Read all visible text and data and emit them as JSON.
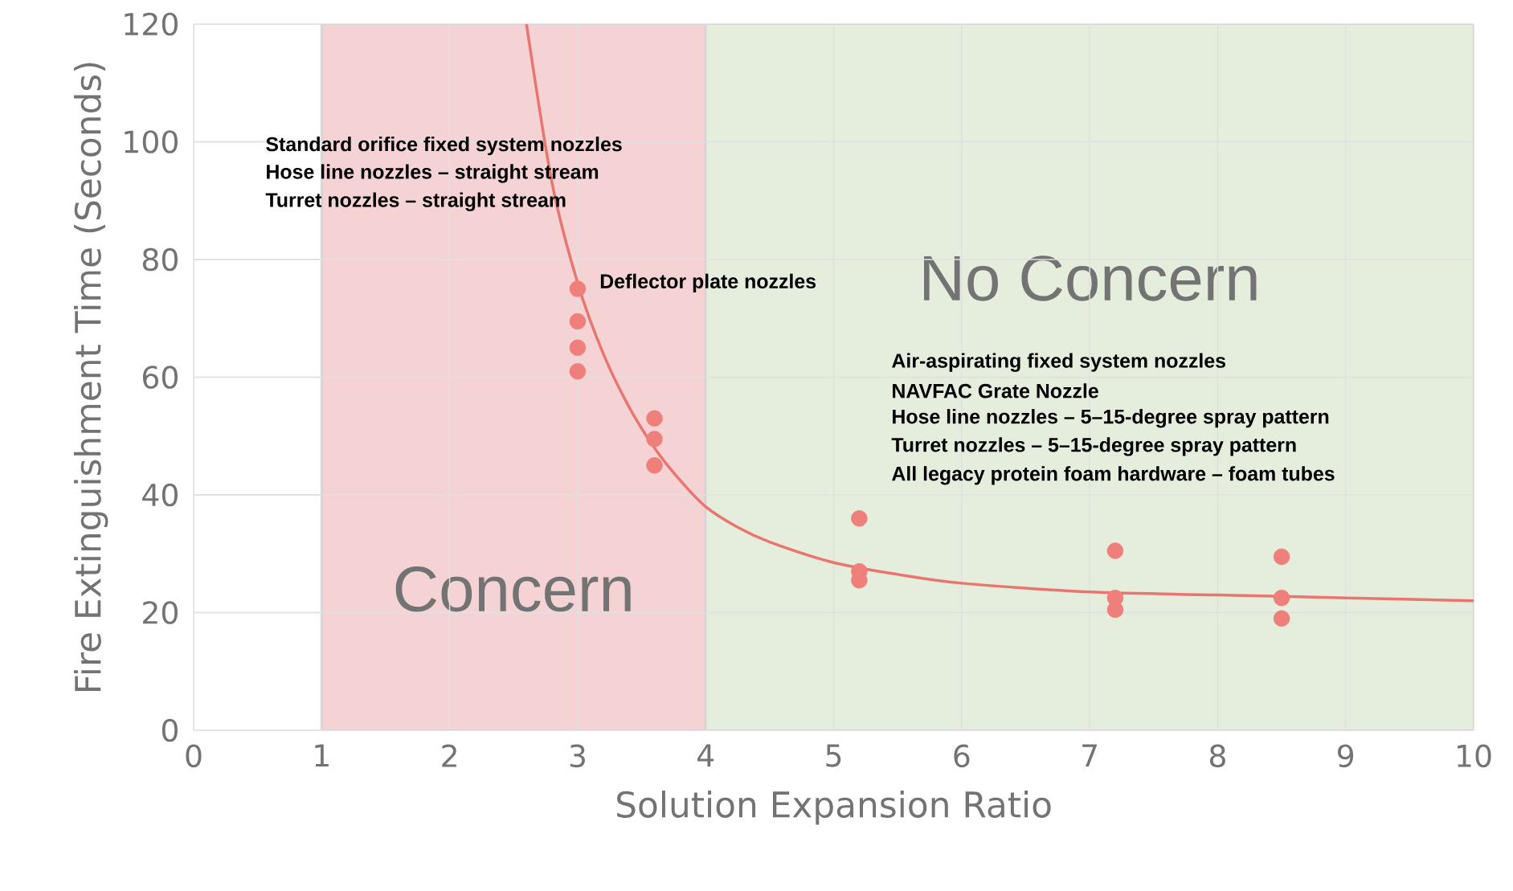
{
  "chart_data": {
    "type": "scatter",
    "xlabel": "Solution Expansion Ratio",
    "ylabel": "Fire Extinguishment Time (Seconds)",
    "xlim": [
      0,
      10
    ],
    "xticks": [
      0,
      1,
      2,
      3,
      4,
      5,
      6,
      7,
      8,
      9,
      10
    ],
    "ylim": [
      0,
      120
    ],
    "yticks": [
      0,
      20,
      40,
      60,
      80,
      100,
      120
    ],
    "grid": true,
    "marker": "circle",
    "bands": [
      {
        "axis": "x",
        "from": 1,
        "to": 4,
        "label": "Concern",
        "color": "#f5d3d5"
      },
      {
        "axis": "x",
        "from": 4,
        "to": 10,
        "label": "No Concern",
        "color": "#e5eedc"
      }
    ],
    "series": [
      {
        "color": "#ee7f7a",
        "x": [
          3,
          3,
          3,
          3,
          3.6,
          3.6,
          3.6,
          5.2,
          5.2,
          5.2,
          7.2,
          7.2,
          7.2,
          8.5,
          8.5,
          8.5
        ],
        "values": [
          75,
          69.5,
          65,
          61,
          53,
          49.5,
          45,
          36,
          27,
          25.5,
          30.5,
          22.5,
          20.5,
          29.5,
          22.5,
          19
        ]
      },
      {
        "type": "line",
        "marker": "none",
        "color": "#e8756e",
        "x": [
          2.6,
          2.8,
          3,
          3.2,
          3.4,
          3.6,
          3.8,
          4,
          4.25,
          4.5,
          5,
          5.5,
          6,
          7,
          8,
          9,
          10
        ],
        "values": [
          120,
          93,
          76,
          64,
          55,
          48,
          42.5,
          38,
          34.5,
          32,
          28.5,
          26.5,
          25,
          23.5,
          23,
          22.5,
          22
        ]
      }
    ],
    "annotations": [
      "Standard orifice fixed system nozzles",
      "Hose line nozzles – straight stream",
      "Turret nozzles – straight stream",
      "Deflector plate nozzles",
      "Air-aspirating fixed system nozzles",
      "NAVFAC Grate Nozzle",
      "Hose line nozzles – 5–15-degree spray pattern",
      "Turret nozzles – 5–15-degree spray pattern",
      "All legacy protein foam hardware – foam tubes"
    ]
  }
}
